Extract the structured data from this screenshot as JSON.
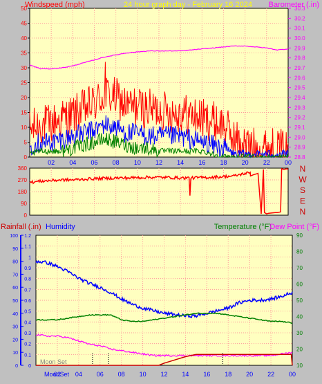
{
  "colors": {
    "background": "#c0c0c0",
    "plot_fill": "#ffffc0",
    "grid": "#ff9a9a",
    "wind_gust": "#ff0000",
    "wind_avg": "#0000ff",
    "wind_low": "#008000",
    "barometer": "#ff00ff",
    "title": "#ffff00",
    "rain": "#cc0000",
    "humidity": "#0000ff",
    "temperature": "#008000",
    "dewpoint": "#ff00ff",
    "axis_left": "#0000ff",
    "axis_right": "#008000"
  },
  "header": {
    "windspeed_label": "Windspeed (mph)",
    "title": "24 hour graph day - February 16 2024",
    "barometer_label": "Barometer (.in)"
  },
  "middle_header": {
    "rainfall_label": "Rainfall (.in)",
    "humidity_label": "Humidity",
    "temperature_label": "Temperature (°F)",
    "dewpoint_label": "Dew Point (°F)"
  },
  "compass_letters": [
    "N",
    "W",
    "S",
    "E",
    "N"
  ],
  "moon_labels": {
    "moon_set": "Moon Set",
    "moon_set_bottom": "MoonSet"
  },
  "x_ticks": [
    "02",
    "04",
    "06",
    "08",
    "10",
    "12",
    "14",
    "16",
    "18",
    "20",
    "22",
    "00"
  ],
  "chart_data": [
    {
      "type": "line",
      "title": "24 hour graph day - February 16 2024",
      "x_ticks": [
        "02",
        "04",
        "06",
        "08",
        "10",
        "12",
        "14",
        "16",
        "18",
        "20",
        "22",
        "00"
      ],
      "y_left": {
        "label": "Windspeed (mph)",
        "ticks": [
          0,
          5,
          10,
          15,
          20,
          25,
          30,
          35,
          40,
          45,
          50
        ],
        "ylim": [
          0,
          50
        ]
      },
      "y_right": {
        "label": "Barometer (.in)",
        "ticks": [
          28.8,
          28.9,
          29.0,
          29.1,
          29.2,
          29.3,
          29.4,
          29.5,
          29.6,
          29.7,
          29.8,
          29.9,
          30.0,
          30.1,
          30.2,
          30.3
        ],
        "ylim": [
          28.8,
          30.3
        ]
      },
      "series": [
        {
          "name": "Wind Gust",
          "axis": "left",
          "x": [
            0,
            1,
            2,
            3,
            4,
            5,
            6,
            7,
            8,
            9,
            10,
            11,
            12,
            13,
            14,
            15,
            16,
            17,
            18,
            19,
            20,
            21,
            22,
            23,
            24
          ],
          "values": [
            9,
            11,
            11,
            13,
            14,
            16,
            18,
            21,
            20,
            17,
            17,
            16,
            16,
            15,
            15,
            14,
            13,
            12,
            11,
            6,
            4,
            3,
            3,
            3,
            2
          ],
          "peak": 32
        },
        {
          "name": "Wind Average",
          "axis": "left",
          "x": [
            0,
            1,
            2,
            3,
            4,
            5,
            6,
            7,
            8,
            9,
            10,
            11,
            12,
            13,
            14,
            15,
            16,
            17,
            18,
            19,
            20,
            21,
            22,
            23,
            24
          ],
          "values": [
            4,
            5,
            5,
            6,
            7,
            8,
            9,
            11,
            10,
            8,
            8,
            7,
            7,
            7,
            7,
            6,
            5,
            4,
            3,
            1,
            1,
            1,
            1,
            1,
            1
          ]
        },
        {
          "name": "Wind Low",
          "axis": "left",
          "x": [
            0,
            1,
            2,
            3,
            4,
            5,
            6,
            7,
            8,
            9,
            10,
            11,
            12,
            13,
            14,
            15,
            16,
            17,
            18,
            19,
            20,
            21,
            22,
            23,
            24
          ],
          "values": [
            1,
            2,
            2,
            2,
            3,
            4,
            5,
            6,
            5,
            4,
            3,
            3,
            2,
            2,
            2,
            2,
            2,
            1,
            0,
            0,
            0,
            0,
            0,
            0,
            0
          ]
        },
        {
          "name": "Barometer",
          "axis": "right",
          "x": [
            0,
            1,
            2,
            3,
            4,
            5,
            6,
            7,
            8,
            9,
            10,
            11,
            12,
            13,
            14,
            15,
            16,
            17,
            18,
            19,
            20,
            21,
            22,
            23,
            24
          ],
          "values": [
            29.73,
            29.69,
            29.69,
            29.7,
            29.72,
            29.75,
            29.78,
            29.81,
            29.83,
            29.85,
            29.86,
            29.87,
            29.87,
            29.87,
            29.87,
            29.88,
            29.89,
            29.9,
            29.91,
            29.92,
            29.92,
            29.91,
            29.9,
            29.88,
            29.89
          ]
        }
      ]
    },
    {
      "type": "line",
      "y_left": {
        "ticks": [
          0,
          90,
          180,
          270,
          360
        ],
        "ylim": [
          0,
          360
        ]
      },
      "y_right": {
        "ticks": [
          "N",
          "W",
          "S",
          "E",
          "N"
        ]
      },
      "series": [
        {
          "name": "Wind Direction",
          "x": [
            0,
            1,
            2,
            3,
            4,
            5,
            6,
            7,
            8,
            9,
            10,
            11,
            12,
            13,
            14,
            15,
            16,
            17,
            18,
            19,
            20,
            21,
            21.5,
            22,
            22.5,
            23,
            23.5,
            24
          ],
          "values": [
            250,
            260,
            265,
            270,
            270,
            275,
            280,
            282,
            285,
            285,
            288,
            290,
            290,
            288,
            285,
            285,
            288,
            290,
            295,
            300,
            320,
            330,
            30,
            20,
            20,
            30,
            350,
            350
          ]
        }
      ]
    },
    {
      "type": "line",
      "x_ticks": [
        "02",
        "04",
        "06",
        "08",
        "10",
        "12",
        "14",
        "16",
        "18",
        "20",
        "22",
        "00"
      ],
      "y_rain": {
        "label": "Rainfall (.in)",
        "ticks": [
          0,
          0.1,
          0.2,
          0.3,
          0.4,
          0.5,
          0.6,
          0.7,
          0.8,
          0.9,
          1,
          1.1,
          1.2
        ],
        "ylim": [
          0,
          1.2
        ]
      },
      "y_humidity": {
        "label": "Humidity",
        "ticks": [
          0,
          10,
          20,
          30,
          40,
          50,
          60,
          70,
          80,
          90,
          100
        ],
        "ylim": [
          0,
          100
        ]
      },
      "y_right": {
        "label": "Temperature (°F) / Dew Point (°F)",
        "ticks": [
          10,
          20,
          30,
          40,
          50,
          60,
          70,
          80,
          90
        ],
        "ylim": [
          10,
          90
        ]
      },
      "series": [
        {
          "name": "Humidity",
          "axis": "humidity",
          "x": [
            0,
            1,
            2,
            3,
            4,
            5,
            6,
            7,
            8,
            9,
            10,
            11,
            12,
            13,
            14,
            15,
            16,
            17,
            18,
            19,
            20,
            21,
            22,
            23,
            24
          ],
          "values": [
            80,
            79,
            76,
            72,
            67,
            63,
            60,
            56,
            51,
            47,
            44,
            42,
            40,
            39,
            38,
            38,
            40,
            42,
            44,
            48,
            50,
            50,
            51,
            53,
            56
          ]
        },
        {
          "name": "Temperature",
          "axis": "right",
          "x": [
            0,
            1,
            2,
            3,
            4,
            5,
            6,
            7,
            8,
            9,
            10,
            11,
            12,
            13,
            14,
            15,
            16,
            17,
            18,
            19,
            20,
            21,
            22,
            23,
            24
          ],
          "values": [
            38,
            38,
            38,
            39,
            40,
            41,
            41,
            41,
            38,
            37,
            37,
            38,
            39,
            40,
            41,
            42,
            42,
            42,
            41,
            40,
            39,
            38,
            37,
            37,
            36
          ]
        },
        {
          "name": "Dew Point",
          "axis": "right",
          "x": [
            0,
            1,
            2,
            3,
            4,
            5,
            6,
            7,
            8,
            9,
            10,
            11,
            12,
            13,
            14,
            15,
            16,
            17,
            18,
            19,
            20,
            21,
            22,
            23,
            24
          ],
          "values": [
            29,
            28,
            28,
            27,
            25,
            23,
            22,
            20,
            19,
            18,
            17,
            16,
            16,
            16,
            16,
            16,
            16,
            16,
            16,
            16,
            16,
            16,
            16,
            17,
            18
          ]
        },
        {
          "name": "Rainfall",
          "axis": "rain",
          "x": [
            0,
            11.5,
            12,
            13,
            14,
            15,
            23.9,
            24
          ],
          "values": [
            0,
            0,
            0.02,
            0.05,
            0.08,
            0.1,
            0.1,
            0
          ]
        }
      ],
      "moon_events_hours": [
        5.3,
        6.8,
        17.5
      ]
    }
  ]
}
